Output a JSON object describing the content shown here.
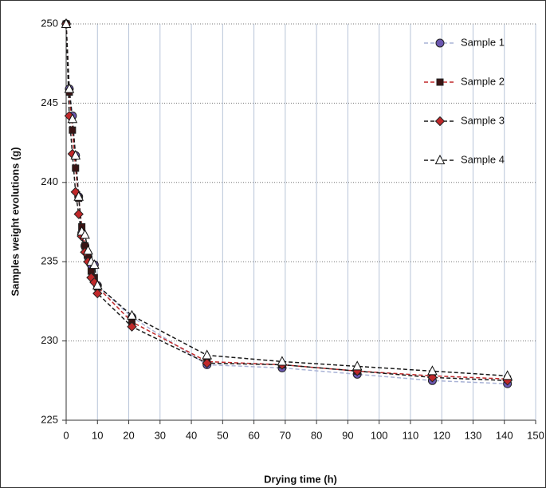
{
  "chart_data": {
    "type": "line",
    "xlabel": "Drying time (h)",
    "ylabel": "Samples weight evolutions (g)",
    "x": [
      0,
      1,
      2,
      3,
      4,
      5,
      6,
      7,
      8,
      9,
      10,
      21,
      45,
      69,
      93,
      117,
      141
    ],
    "series": [
      {
        "name": "Sample 1",
        "color": "#a9b3d6",
        "marker": "circle",
        "marker_color": "#6b57b0",
        "values": [
          250,
          245.9,
          244.2,
          241.7,
          239.1,
          236.8,
          236.0,
          235.3,
          234.8,
          234.8,
          233.5,
          231.5,
          228.5,
          228.3,
          227.9,
          227.5,
          227.3
        ]
      },
      {
        "name": "Sample 2",
        "color": "#c0282a",
        "marker": "square",
        "marker_color": "#3a1414",
        "values": [
          250,
          245.7,
          243.3,
          240.9,
          239.0,
          237.2,
          236.0,
          235.4,
          234.4,
          234.0,
          233.4,
          231.2,
          228.7,
          228.5,
          228.1,
          227.8,
          227.6
        ]
      },
      {
        "name": "Sample 3",
        "color": "#1a1a1a",
        "marker": "diamond",
        "marker_color": "#c0282a",
        "values": [
          250,
          244.2,
          241.8,
          239.4,
          238.0,
          236.6,
          235.6,
          235.0,
          234.0,
          233.7,
          233.0,
          230.9,
          228.6,
          228.5,
          228.1,
          227.7,
          227.5
        ]
      },
      {
        "name": "Sample 4",
        "color": "#1a1a1a",
        "marker": "triangle",
        "marker_color": "#ffffff",
        "values": [
          250,
          245.9,
          244.0,
          241.7,
          239.1,
          236.9,
          236.7,
          235.7,
          235.0,
          234.8,
          233.5,
          231.6,
          229.1,
          228.7,
          228.4,
          228.1,
          227.8
        ]
      }
    ],
    "xlim": [
      0,
      150
    ],
    "xticks": [
      0,
      10,
      20,
      30,
      40,
      50,
      60,
      70,
      80,
      90,
      100,
      110,
      120,
      130,
      140,
      150
    ],
    "ylim": [
      225,
      250
    ],
    "yticks": [
      225,
      230,
      235,
      240,
      245,
      250
    ],
    "grid": true,
    "legend": "top-right"
  }
}
